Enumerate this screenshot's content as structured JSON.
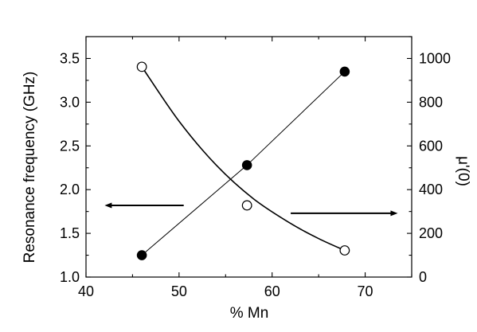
{
  "chart_data": {
    "type": "scatter",
    "xlabel": "% Mn",
    "ylabel_left": "Resonance frequency (GHz)",
    "ylabel_right": "μ'(0)",
    "xlim": [
      40,
      75
    ],
    "ylim_left": [
      1.0,
      3.75
    ],
    "ylim_right": [
      0,
      1100
    ],
    "x_ticks": [
      40,
      50,
      60,
      70
    ],
    "y_left_ticks": [
      "1.0",
      "1.5",
      "2.0",
      "2.5",
      "3.0",
      "3.5"
    ],
    "y_right_ticks": [
      "0",
      "200",
      "400",
      "600",
      "800",
      "1000"
    ],
    "grid": false,
    "series": [
      {
        "axis": "left",
        "marker": "filled-circle",
        "line": "straight",
        "points": [
          {
            "x": 46.0,
            "y": 1.25
          },
          {
            "x": 57.3,
            "y": 2.28
          },
          {
            "x": 67.8,
            "y": 3.35
          }
        ]
      },
      {
        "axis": "right",
        "marker": "open-circle",
        "line": "smooth-fit",
        "points": [
          {
            "x": 46.0,
            "y": 962
          },
          {
            "x": 57.3,
            "y": 328
          },
          {
            "x": 67.8,
            "y": 122
          }
        ],
        "fit_curve": [
          {
            "x": 46.0,
            "y": 962
          },
          {
            "x": 50.0,
            "y": 713
          },
          {
            "x": 54.0,
            "y": 512
          },
          {
            "x": 58.0,
            "y": 358
          },
          {
            "x": 62.0,
            "y": 245
          },
          {
            "x": 65.0,
            "y": 176
          },
          {
            "x": 67.8,
            "y": 122
          }
        ]
      }
    ],
    "annotations": [
      {
        "type": "arrow",
        "direction": "left",
        "meaning": "points to left axis",
        "x_from": 50.5,
        "x_to": 42.0,
        "y_left": 1.82
      },
      {
        "type": "arrow",
        "direction": "right",
        "meaning": "points to right axis",
        "x_from": 62.0,
        "x_to": 73.5,
        "y_left": 1.73
      }
    ]
  }
}
